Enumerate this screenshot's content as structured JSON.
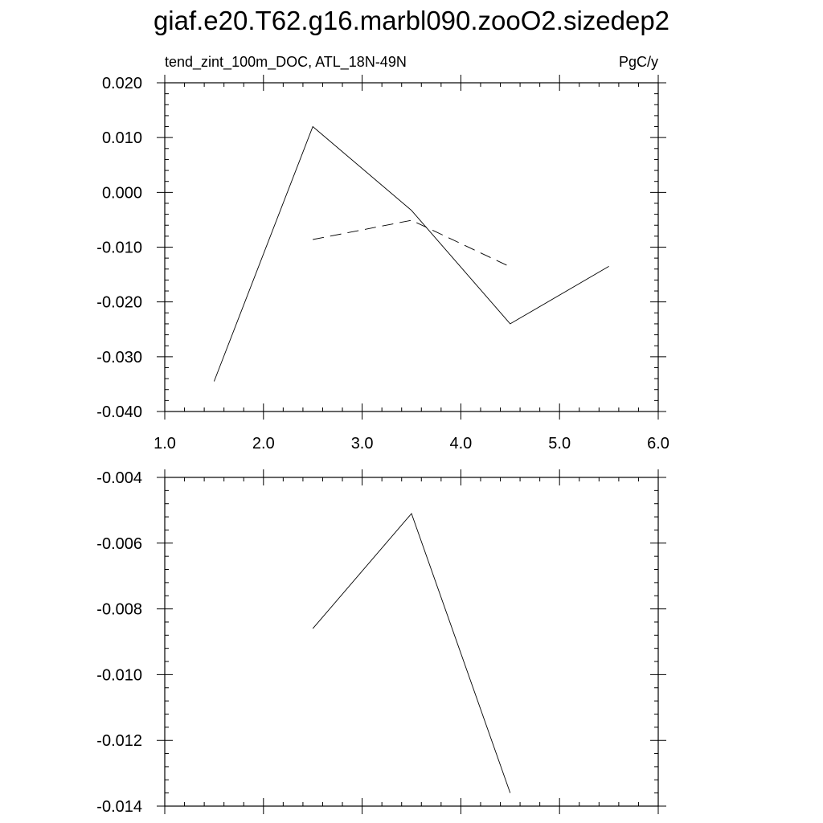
{
  "title": "giaf.e20.T62.g16.marbl090.zooO2.sizedep2",
  "chart_data": [
    {
      "type": "line",
      "left_label": "tend_zint_100m_DOC, ATL_18N-49N",
      "right_label": "PgC/y",
      "xlim": [
        1.0,
        6.0
      ],
      "ylim": [
        -0.04,
        0.02
      ],
      "x_ticks": [
        "1.0",
        "2.0",
        "3.0",
        "4.0",
        "5.0",
        "6.0"
      ],
      "y_ticks": [
        "0.020",
        "0.010",
        "0.000",
        "-0.010",
        "-0.020",
        "-0.030",
        "-0.040"
      ],
      "grid": false,
      "series": [
        {
          "style": "solid",
          "x": [
            1.5,
            2.5,
            3.5,
            4.5,
            5.5
          ],
          "y": [
            -0.0345,
            0.012,
            -0.0033,
            -0.024,
            -0.0135
          ]
        },
        {
          "style": "dashed",
          "x": [
            2.5,
            3.5,
            4.5
          ],
          "y": [
            -0.0086,
            -0.0051,
            -0.0136
          ]
        }
      ]
    },
    {
      "type": "line",
      "xlim": [
        1.0,
        6.0
      ],
      "ylim": [
        -0.014,
        -0.004
      ],
      "x_ticks": [],
      "y_ticks": [
        "-0.004",
        "-0.006",
        "-0.008",
        "-0.010",
        "-0.012",
        "-0.014"
      ],
      "grid": false,
      "series": [
        {
          "style": "solid",
          "x": [
            2.5,
            3.5,
            4.5
          ],
          "y": [
            -0.0086,
            -0.0051,
            -0.0136
          ]
        }
      ]
    }
  ]
}
